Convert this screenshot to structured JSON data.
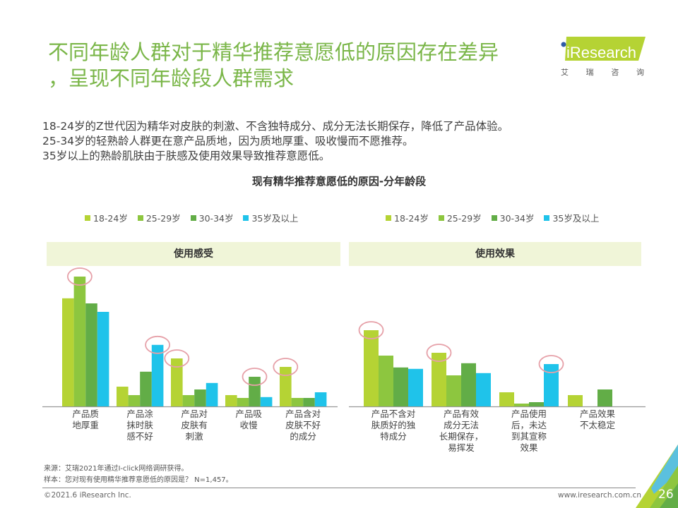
{
  "header": {
    "title_line1": "不同年龄人群对于精华推荐意愿低的原因存在差异",
    "title_line2": "，呈现不同年龄段人群需求",
    "logo_text": "iResearch",
    "logo_cn": [
      "艾",
      "瑞",
      "咨",
      "询"
    ]
  },
  "summary": [
    "18-24岁的Z世代因为精华对皮肤的刺激、不含独特成分、成分无法长期保存，降低了产品体验。",
    "25-34岁的轻熟龄人群更在意产品质地，因为质地厚重、吸收慢而不愿推荐。",
    "35岁以上的熟龄肌肤由于肤感及使用效果导致推荐意愿低。"
  ],
  "colors": {
    "title_green": "#7ab648",
    "s1": "#b5d334",
    "s2": "#8dc63f",
    "s3": "#62ad47",
    "s4": "#1fc3ea",
    "highlight": "#e6a0a8",
    "panel_bg": "#f0f5d8"
  },
  "chart_data": {
    "type": "bar",
    "title": "现有精华推荐意愿低的原因-分年龄段",
    "note": "Values are relative bar heights estimated from pixels (no axis shown); unit approx. percent of respondents.",
    "legend": [
      "18-24岁",
      "25-29岁",
      "30-34岁",
      "35岁及以上"
    ],
    "legend_placement": "top",
    "panels": [
      {
        "name": "使用感受",
        "categories": [
          "产品质\n地厚重",
          "产品涂\n抹时肤\n感不好",
          "产品对\n皮肤有\n刺激",
          "产品吸\n收慢",
          "产品含对\n皮肤不好\n的成分"
        ],
        "series": [
          {
            "name": "18-24岁",
            "values": [
              38.3,
              7.0,
              17.0,
              4.0,
              14.0
            ]
          },
          {
            "name": "25-29岁",
            "values": [
              46.0,
              4.0,
              4.0,
              3.0,
              3.0
            ]
          },
          {
            "name": "30-34岁",
            "values": [
              36.5,
              12.3,
              6.0,
              10.5,
              3.0
            ]
          },
          {
            "name": "35岁及以上",
            "values": [
              33.5,
              21.8,
              8.3,
              3.3,
              5.0
            ]
          }
        ],
        "highlighted": [
          [
            0,
            1
          ],
          [
            1,
            3
          ],
          [
            2,
            0
          ],
          [
            3,
            2
          ],
          [
            4,
            0
          ]
        ]
      },
      {
        "name": "使用效果",
        "categories": [
          "产品不含对\n肤质好的独\n特成分",
          "产品有效\n成分无法\n长期保存，\n易挥发",
          "产品使用\n后，未达\n到其宣称\n效果",
          "产品效果\n不太稳定"
        ],
        "series": [
          {
            "name": "18-24岁",
            "values": [
              27.0,
              19.0,
              5.0,
              4.0
            ]
          },
          {
            "name": "25-29岁",
            "values": [
              18.0,
              11.0,
              1.0,
              0
            ]
          },
          {
            "name": "30-34岁",
            "values": [
              13.8,
              15.3,
              1.5,
              6.0
            ]
          },
          {
            "name": "35岁及以上",
            "values": [
              13.3,
              11.8,
              15.0,
              0
            ]
          }
        ],
        "highlighted": [
          [
            0,
            0
          ],
          [
            1,
            0
          ],
          [
            2,
            3
          ]
        ]
      }
    ],
    "ylim": [
      0,
      50
    ],
    "grid": false
  },
  "notes": {
    "source": "来源：艾瑞2021年通过I-click网络调研获得。",
    "sample": "样本：您对现有使用精华推荐意愿低的原因是？ N=1,457。"
  },
  "footer": {
    "copyright": "©2021.6 iResearch Inc.",
    "website": "www.iresearch.com.cn",
    "page": "26"
  }
}
